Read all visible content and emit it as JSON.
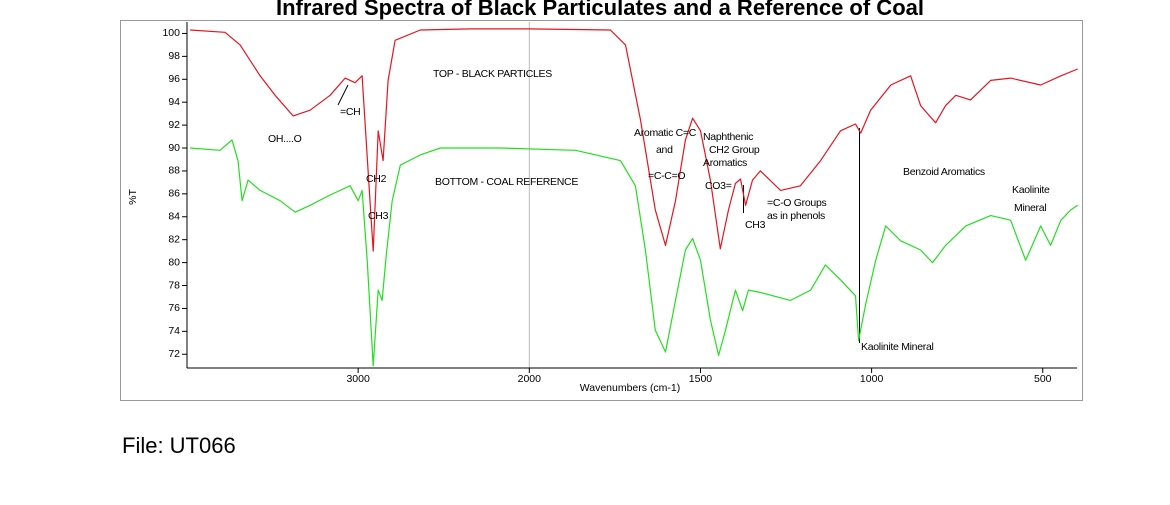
{
  "chart_data": {
    "type": "line",
    "title": "Infrared Spectra of Black Particulates and a Reference of Coal",
    "x_label": "Wavenumbers (cm-1)",
    "y_label": "%T",
    "xlim": [
      4000,
      400
    ],
    "x_expansion": {
      "below": 2000,
      "factor": 2
    },
    "xticks": [
      3000,
      2000,
      1500,
      1000,
      500
    ],
    "ylim": [
      70.8,
      101
    ],
    "yticks": [
      72,
      74,
      76,
      78,
      80,
      82,
      84,
      86,
      88,
      90,
      92,
      94,
      96,
      98,
      100
    ],
    "series": [
      {
        "color": "#e8141e",
        "x": [
          3982,
          3778,
          3690,
          3573,
          3485,
          3380,
          3281,
          3164,
          3076,
          3018,
          2977,
          2942,
          2912,
          2883,
          2854,
          2825,
          2784,
          2637,
          2345,
          2000,
          1763,
          1719,
          1675,
          1632,
          1602,
          1573,
          1544,
          1523,
          1500,
          1471,
          1442,
          1418,
          1398,
          1383,
          1368,
          1348,
          1325,
          1266,
          1208,
          1149,
          1091,
          1047,
          1032,
          1003,
          944,
          886,
          857,
          813,
          784,
          754,
          711,
          652,
          594,
          506,
          447,
          398
        ],
        "values": [
          100.3,
          100.1,
          99,
          96.3,
          94.6,
          92.8,
          93.3,
          94.6,
          96.1,
          95.7,
          96.3,
          88,
          81,
          91.5,
          88.9,
          95.9,
          99.4,
          100.3,
          100.4,
          100.4,
          100.3,
          99,
          92.4,
          84.6,
          81.5,
          85.4,
          90.7,
          92.6,
          91.5,
          87.2,
          81.2,
          84.6,
          86.9,
          87.3,
          85,
          87.2,
          88,
          86.3,
          86.7,
          88.9,
          91.5,
          92.1,
          91.3,
          93.3,
          95.5,
          96.3,
          93.7,
          92.2,
          93.7,
          94.6,
          94.2,
          95.9,
          96.1,
          95.5,
          96.3,
          96.9
        ]
      },
      {
        "color": "#22e01e",
        "x": [
          3982,
          3807,
          3737,
          3702,
          3678,
          3643,
          3573,
          3456,
          3368,
          3281,
          3164,
          3047,
          3000,
          2977,
          2947,
          2912,
          2883,
          2860,
          2836,
          2801,
          2754,
          2637,
          2520,
          2170,
          1865,
          1734,
          1690,
          1661,
          1632,
          1602,
          1573,
          1544,
          1523,
          1500,
          1471,
          1447,
          1427,
          1398,
          1377,
          1360,
          1325,
          1237,
          1178,
          1135,
          1091,
          1047,
          1038,
          1018,
          988,
          959,
          915,
          857,
          822,
          784,
          725,
          652,
          594,
          550,
          506,
          477,
          447,
          418,
          398
        ],
        "values": [
          90,
          89.8,
          90.7,
          88.9,
          85.4,
          87.2,
          86.3,
          85.4,
          84.4,
          85,
          85.9,
          86.7,
          85.4,
          86.3,
          80.2,
          71,
          77.6,
          76.7,
          80.6,
          85.4,
          88.5,
          89.4,
          90,
          90,
          89.8,
          88.9,
          86.7,
          81.1,
          74.1,
          72.2,
          76.7,
          81.1,
          82.1,
          80.2,
          75,
          71.9,
          74.1,
          77.6,
          75.8,
          77.6,
          77.4,
          76.7,
          77.6,
          79.8,
          78.5,
          77.1,
          73.2,
          76.3,
          80.2,
          83.2,
          81.9,
          81.1,
          80,
          81.5,
          83.2,
          84.1,
          83.7,
          80.2,
          83.2,
          81.5,
          83.7,
          84.6,
          85
        ]
      }
    ],
    "annotations": [
      "=CH",
      "OH....O",
      "CH2",
      "CH3",
      "TOP - BLACK PARTICLES",
      "BOTTOM - COAL REFERENCE",
      "Aromatic C=C",
      "and",
      "=C-C=O",
      "Naphthenic",
      "CH2 Group",
      "Aromatics",
      "CO3=",
      "CH3",
      "=C-O Groups",
      "as in phenols",
      "Benzoid Aromatics",
      "Kaolinite",
      "Mineral",
      "Kaolinite Mineral"
    ]
  },
  "footer": {
    "file": "File:  UT066"
  }
}
